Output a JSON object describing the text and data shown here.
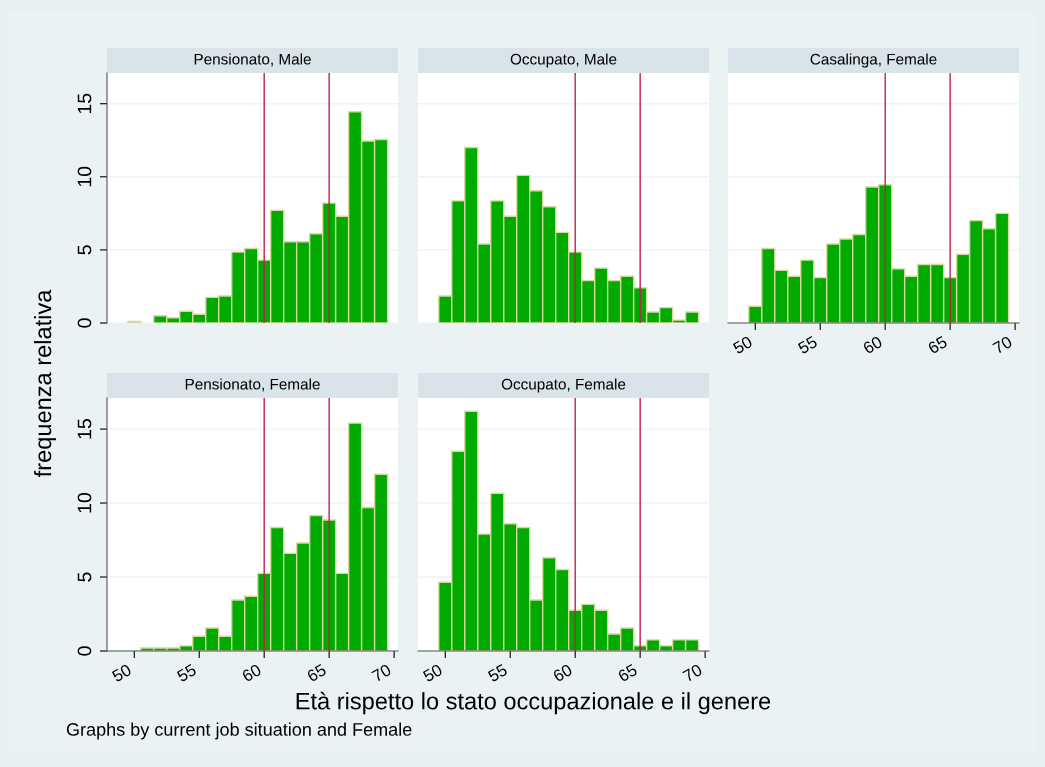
{
  "chart_data": [
    {
      "type": "histogram",
      "title": "Pensionato, Male",
      "ylabel": "frequenza relativa",
      "bins": [
        49.5,
        50.5,
        51.5,
        52.5,
        53.5,
        54.5,
        55.5,
        56.5,
        57.5,
        58.5,
        59.5,
        60.5,
        61.5,
        62.5,
        63.5,
        64.5,
        65.5,
        66.5,
        67.5,
        68.5,
        69.5
      ],
      "values": [
        0.1,
        0,
        0.5,
        0.35,
        0.8,
        0.6,
        1.75,
        1.85,
        4.85,
        5.1,
        4.3,
        7.7,
        5.55,
        5.55,
        6.1,
        8.2,
        7.3,
        14.45,
        12.45,
        12.55
      ],
      "color": "#00aa00",
      "xlim": [
        47.9,
        70.3
      ],
      "ylim": [
        0,
        17.1
      ],
      "xticks": [
        50,
        55,
        60,
        65,
        70
      ],
      "yticks": [
        0,
        5,
        10,
        15
      ],
      "grid": "y",
      "tick_labels": "y",
      "ref_lines": [
        {
          "axis": "x",
          "value": 60,
          "color": "#c0204a"
        },
        {
          "axis": "x",
          "value": 65,
          "color": "#c0204a"
        }
      ]
    },
    {
      "type": "histogram",
      "title": "Occupato, Male",
      "bins": [
        49.5,
        50.5,
        51.5,
        52.5,
        53.5,
        54.5,
        55.5,
        56.5,
        57.5,
        58.5,
        59.5,
        60.5,
        61.5,
        62.5,
        63.5,
        64.5,
        65.5,
        66.5,
        67.5,
        68.5,
        69.5
      ],
      "values": [
        1.85,
        8.35,
        12.0,
        5.4,
        8.35,
        7.3,
        10.1,
        9.05,
        7.95,
        6.2,
        4.85,
        2.9,
        3.75,
        2.9,
        3.2,
        2.4,
        0.75,
        1.05,
        0.2,
        0.75
      ],
      "color": "#00aa00",
      "xlim": [
        47.9,
        70.3
      ],
      "ylim": [
        0,
        17.1
      ],
      "xticks": [
        50,
        55,
        60,
        65,
        70
      ],
      "yticks": [
        0,
        5,
        10,
        15
      ],
      "grid": "y",
      "tick_labels": false,
      "ref_lines": [
        {
          "axis": "x",
          "value": 60,
          "color": "#c0204a"
        },
        {
          "axis": "x",
          "value": 65,
          "color": "#c0204a"
        }
      ]
    },
    {
      "type": "histogram",
      "title": "Casalinga, Female",
      "bins": [
        49.5,
        50.5,
        51.5,
        52.5,
        53.5,
        54.5,
        55.5,
        56.5,
        57.5,
        58.5,
        59.5,
        60.5,
        61.5,
        62.5,
        63.5,
        64.5,
        65.5,
        66.5,
        67.5,
        68.5,
        69.5
      ],
      "values": [
        1.15,
        5.1,
        3.6,
        3.2,
        4.3,
        3.1,
        5.4,
        5.75,
        6.05,
        9.3,
        9.45,
        3.7,
        3.2,
        4.0,
        4.0,
        3.1,
        4.7,
        7.0,
        6.45,
        7.5
      ],
      "color": "#00aa00",
      "xlim": [
        47.9,
        70.3
      ],
      "ylim": [
        0,
        17.1
      ],
      "xticks": [
        50,
        55,
        60,
        65,
        70
      ],
      "yticks": [
        0,
        5,
        10,
        15
      ],
      "grid": "y",
      "tick_labels": "x",
      "ref_lines": [
        {
          "axis": "x",
          "value": 60,
          "color": "#c0204a"
        },
        {
          "axis": "x",
          "value": 65,
          "color": "#c0204a"
        }
      ]
    },
    {
      "type": "histogram",
      "title": "Pensionato, Female",
      "bins": [
        49.5,
        50.5,
        51.5,
        52.5,
        53.5,
        54.5,
        55.5,
        56.5,
        57.5,
        58.5,
        59.5,
        60.5,
        61.5,
        62.5,
        63.5,
        64.5,
        65.5,
        66.5,
        67.5,
        68.5,
        69.5
      ],
      "values": [
        0,
        0.2,
        0.2,
        0.2,
        0.35,
        1.0,
        1.55,
        1.0,
        3.45,
        3.7,
        5.25,
        8.35,
        6.6,
        7.3,
        9.15,
        8.85,
        5.25,
        15.4,
        9.7,
        11.95
      ],
      "color": "#00aa00",
      "xlim": [
        47.9,
        70.3
      ],
      "ylim": [
        0,
        17.1
      ],
      "xticks": [
        50,
        55,
        60,
        65,
        70
      ],
      "yticks": [
        0,
        5,
        10,
        15
      ],
      "grid": "y",
      "ref_lines": [
        {
          "axis": "x",
          "value": 60,
          "color": "#c0204a"
        },
        {
          "axis": "x",
          "value": 65,
          "color": "#c0204a"
        }
      ]
    },
    {
      "type": "histogram",
      "title": "Occupato, Female",
      "xlabel": "Età rispetto lo stato occupazionale e il genere",
      "annotations": [
        "Graphs by current job situation and Female"
      ],
      "bins": [
        49.5,
        50.5,
        51.5,
        52.5,
        53.5,
        54.5,
        55.5,
        56.5,
        57.5,
        58.5,
        59.5,
        60.5,
        61.5,
        62.5,
        63.5,
        64.5,
        65.5,
        66.5,
        67.5,
        68.5,
        69.5
      ],
      "values": [
        4.65,
        13.5,
        16.2,
        7.9,
        10.65,
        8.6,
        8.35,
        3.45,
        6.3,
        5.5,
        2.75,
        3.15,
        2.75,
        1.15,
        1.55,
        0.35,
        0.75,
        0.35,
        0.75,
        0.75
      ],
      "color": "#00aa00",
      "xlim": [
        47.9,
        70.3
      ],
      "ylim": [
        0,
        17.1
      ],
      "xticks": [
        50,
        55,
        60,
        65,
        70
      ],
      "yticks": [
        0,
        5,
        10,
        15
      ],
      "grid": "y",
      "tick_labels": "x",
      "ref_lines": [
        {
          "axis": "x",
          "value": 60,
          "color": "#c0204a"
        },
        {
          "axis": "x",
          "value": 65,
          "color": "#c0204a"
        }
      ]
    }
  ]
}
